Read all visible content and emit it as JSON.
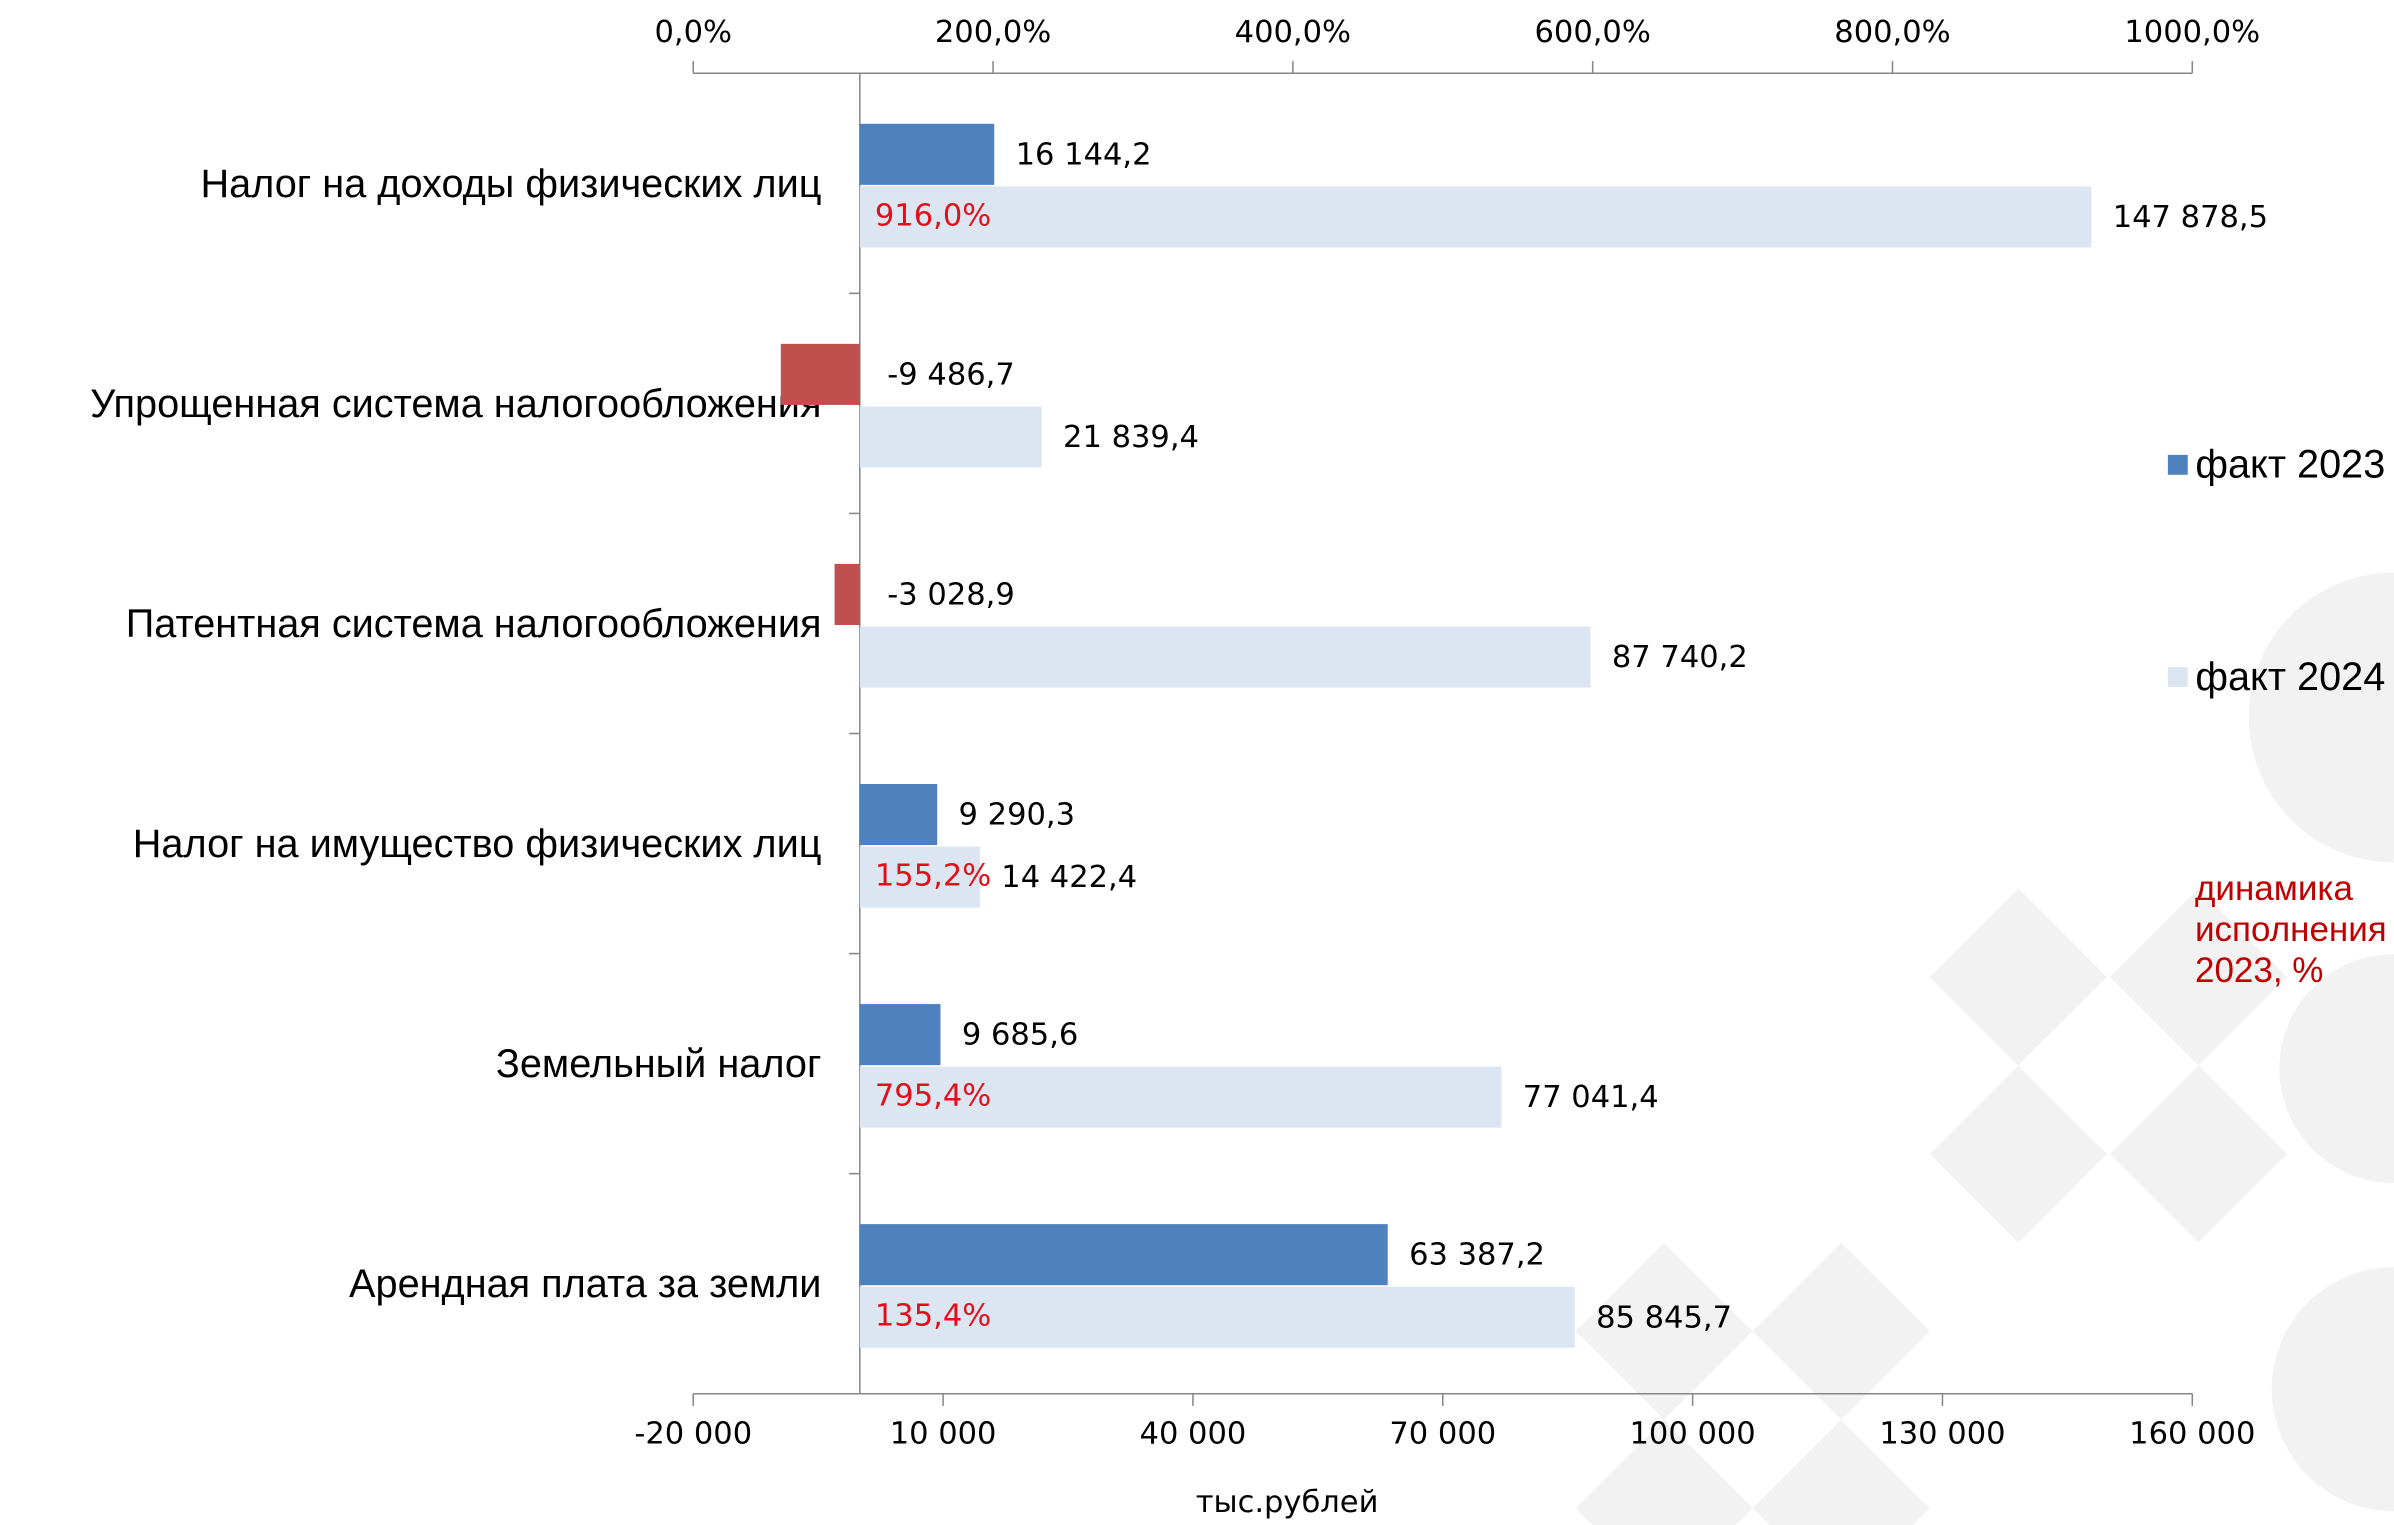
{
  "chart_data": {
    "type": "bar",
    "orientation": "horizontal",
    "x_label": "тыс.рублей",
    "categories": [
      "Налог на доходы физических лиц",
      "Упрощенная система налогообложения",
      "Патентная система налогообложения",
      "Налог на имущество физических лиц",
      "Земельный налог",
      "Арендная плата за земли"
    ],
    "series": [
      {
        "name": "факт 2023",
        "color": "#4f81bd",
        "negative_color": "#c0504d",
        "values": [
          16144.2,
          -9486.7,
          -3028.9,
          9290.3,
          9685.6,
          63387.2
        ],
        "value_labels": [
          "16 144,2",
          "-9 486,7",
          "-3 028,9",
          "9 290,3",
          "9 685,6",
          "63 387,2"
        ]
      },
      {
        "name": "факт 2024",
        "color": "#dce6f2",
        "values": [
          147878.5,
          21839.4,
          87740.2,
          14422.4,
          77041.4,
          85845.7
        ],
        "value_labels": [
          "147 878,5",
          "21 839,4",
          "87 740,2",
          "14 422,4",
          "77 041,4",
          "85 845,7"
        ]
      },
      {
        "name": "динамика исполнения 2023, %",
        "color": "#e0101a",
        "axis": "x2",
        "values": [
          916.0,
          null,
          null,
          155.2,
          795.4,
          135.4
        ],
        "value_labels": [
          "916,0%",
          null,
          null,
          "155,2%",
          "795,4%",
          "135,4%"
        ]
      }
    ],
    "xlim": [
      -20000,
      160000
    ],
    "xticks": [
      {
        "value": -20000,
        "label": "-20 000"
      },
      {
        "value": 10000,
        "label": "10 000"
      },
      {
        "value": 40000,
        "label": "40 000"
      },
      {
        "value": 70000,
        "label": "70 000"
      },
      {
        "value": 100000,
        "label": "100 000"
      },
      {
        "value": 130000,
        "label": "130 000"
      },
      {
        "value": 160000,
        "label": "160 000"
      }
    ],
    "x2lim": [
      0,
      1000
    ],
    "x2ticks": [
      {
        "value": 0,
        "label": "0,0%"
      },
      {
        "value": 200,
        "label": "200,0%"
      },
      {
        "value": 400,
        "label": "400,0%"
      },
      {
        "value": 600,
        "label": "600,0%"
      },
      {
        "value": 800,
        "label": "800,0%"
      },
      {
        "value": 1000,
        "label": "1000,0%"
      }
    ],
    "legend": "right"
  }
}
